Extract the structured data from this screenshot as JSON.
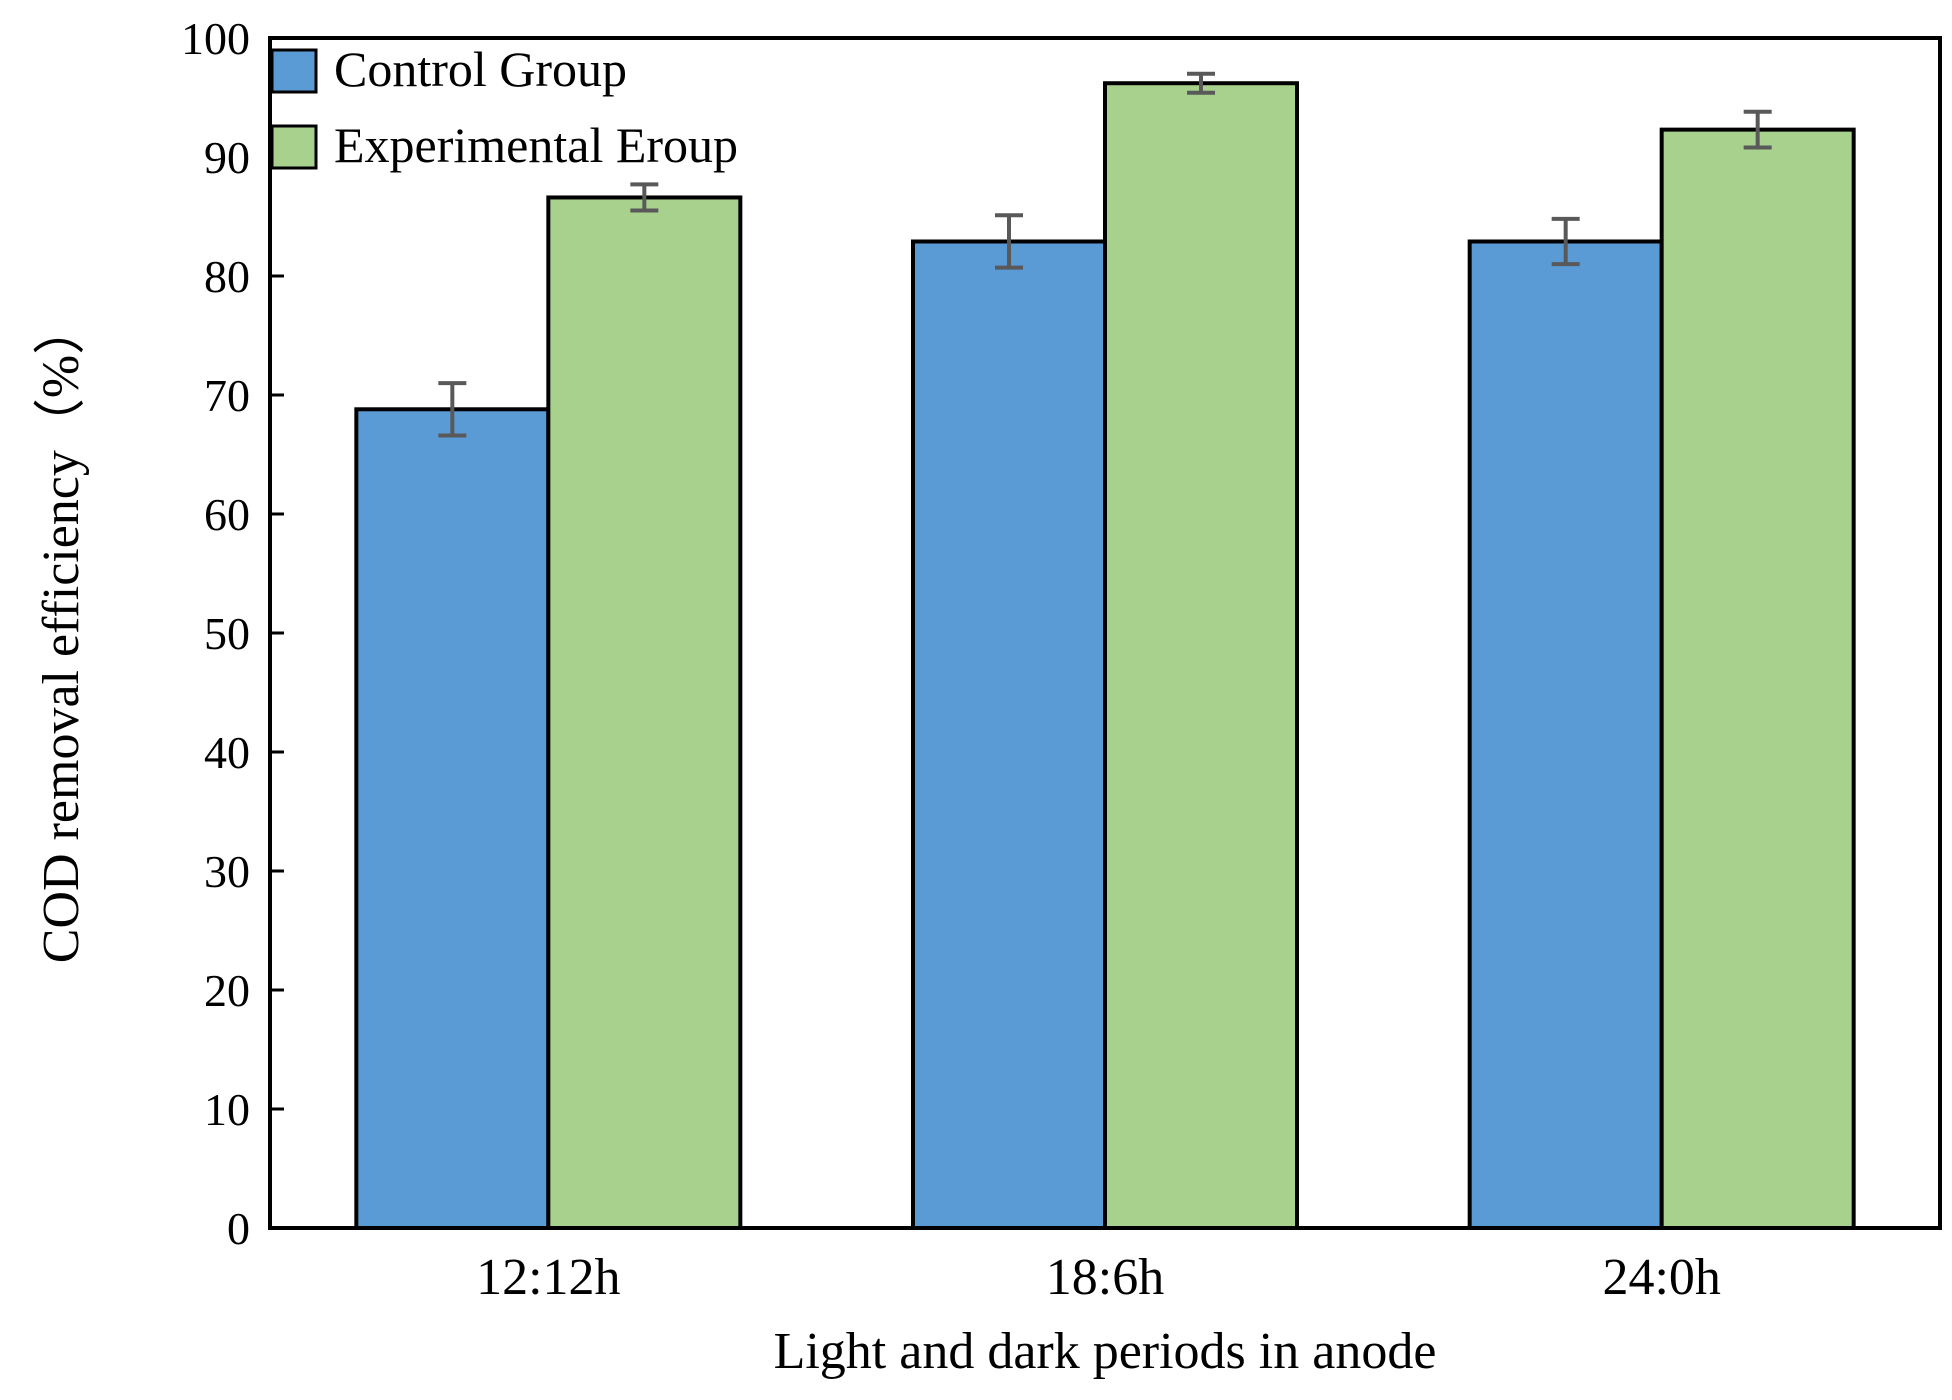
{
  "chart_data": {
    "type": "bar",
    "categories": [
      "12:12h",
      "18:6h",
      "24:0h"
    ],
    "series": [
      {
        "name": "Control Group",
        "values": [
          68.8,
          82.9,
          82.9
        ],
        "errors": [
          2.2,
          2.2,
          1.9
        ],
        "color": "#5b9bd5"
      },
      {
        "name": "Experimental Eroup",
        "values": [
          86.6,
          96.2,
          92.3
        ],
        "errors": [
          1.1,
          0.8,
          1.5
        ],
        "color": "#a9d18e"
      }
    ],
    "title": "",
    "xlabel": "Light and dark periods in anode",
    "ylabel": "COD removal efficiency（%）",
    "ylim": [
      0,
      100
    ],
    "yticks": [
      0,
      10,
      20,
      30,
      40,
      50,
      60,
      70,
      80,
      90,
      100
    ],
    "grid": false,
    "legend": "top-left",
    "bar_outline_color": "#000000",
    "error_bar_color": "#595959"
  }
}
